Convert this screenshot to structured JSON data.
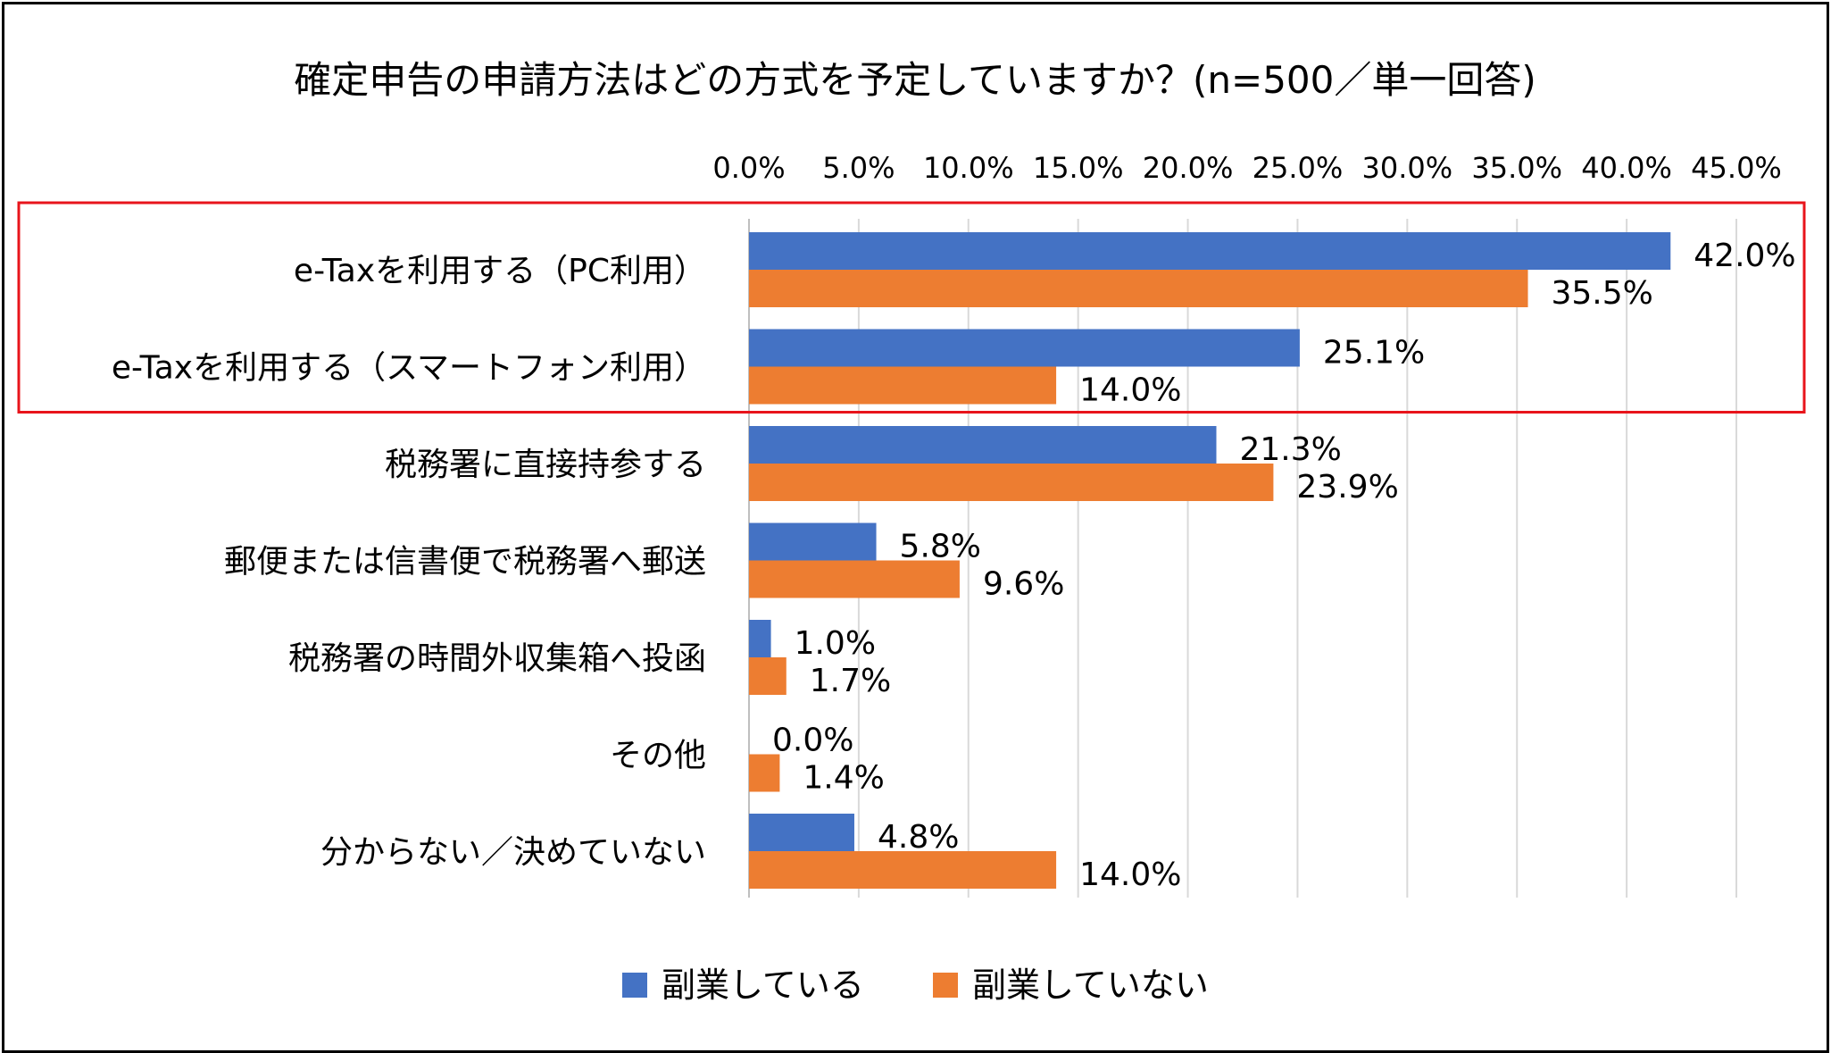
{
  "chart_data": {
    "type": "bar",
    "orientation": "horizontal",
    "title": "確定申告の申請方法はどの方式を予定していますか？(n=500／単一回答)",
    "xlabel": "",
    "ylabel": "",
    "xlim": [
      0,
      45
    ],
    "tick_values": [
      0,
      5,
      10,
      15,
      20,
      25,
      30,
      35,
      40,
      45
    ],
    "tick_labels": [
      "0.0%",
      "5.0%",
      "10.0%",
      "15.0%",
      "20.0%",
      "25.0%",
      "30.0%",
      "35.0%",
      "40.0%",
      "45.0%"
    ],
    "grid": true,
    "legend_position": "bottom",
    "categories": [
      "e-Taxを利用する（PC利用）",
      "e-Taxを利用する（スマートフォン利用）",
      "税務署に直接持参する",
      "郵便または信書便で税務署へ郵送",
      "税務署の時間外収集箱へ投函",
      "その他",
      "分からない／決めていない"
    ],
    "series": [
      {
        "name": "副業している",
        "color": "#4472C4",
        "values": [
          42.0,
          25.1,
          21.3,
          5.8,
          1.0,
          0.0,
          4.8
        ],
        "labels": [
          "42.0%",
          "25.1%",
          "21.3%",
          "5.8%",
          "1.0%",
          "0.0%",
          "4.8%"
        ]
      },
      {
        "name": "副業していない",
        "color": "#ED7D31",
        "values": [
          35.5,
          14.0,
          23.9,
          9.6,
          1.7,
          1.4,
          14.0
        ],
        "labels": [
          "35.5%",
          "14.0%",
          "23.9%",
          "9.6%",
          "1.7%",
          "1.4%",
          "14.0%"
        ]
      }
    ],
    "highlight": {
      "categories": [
        0,
        1
      ],
      "color": "#E8141B"
    }
  }
}
